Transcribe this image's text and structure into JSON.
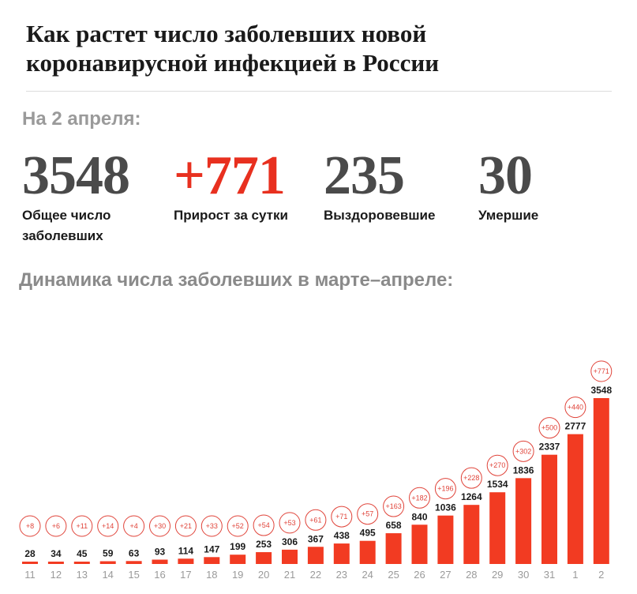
{
  "header": {
    "title": "Как растет число заболевших новой коронавирусной инфекцией в России"
  },
  "summary": {
    "date_label": "На 2 апреля:",
    "total": {
      "value": "3548",
      "caption": "Общее число заболевших"
    },
    "growth": {
      "value": "+771",
      "caption": "Прирост за сутки"
    },
    "recovered": {
      "value": "235",
      "caption": "Выздоровевшие"
    },
    "deaths": {
      "value": "30",
      "caption": "Умершие"
    }
  },
  "chart_title": "Динамика числа заболевших в марте–апреле:",
  "colors": {
    "bar": "#f23b22",
    "accent": "#e8301f",
    "text": "#1a1a1a",
    "muted": "#9a9a9a",
    "circle": "#e0443a"
  },
  "chart_data": {
    "type": "bar",
    "title": "Динамика числа заболевших в марте–апреле:",
    "xlabel": "",
    "ylabel": "",
    "categories": [
      "11",
      "12",
      "13",
      "14",
      "15",
      "16",
      "17",
      "18",
      "19",
      "20",
      "21",
      "22",
      "23",
      "24",
      "25",
      "26",
      "27",
      "28",
      "29",
      "30",
      "31",
      "1",
      "2"
    ],
    "series": [
      {
        "name": "Общее число заболевших",
        "values": [
          28,
          34,
          45,
          59,
          63,
          93,
          114,
          147,
          199,
          253,
          306,
          367,
          438,
          495,
          658,
          840,
          1036,
          1264,
          1534,
          1836,
          2337,
          2777,
          3548
        ]
      },
      {
        "name": "Прирост за сутки",
        "values": [
          "+8",
          "+6",
          "+11",
          "+14",
          "+4",
          "+30",
          "+21",
          "+33",
          "+52",
          "+54",
          "+53",
          "+61",
          "+71",
          "+57",
          "+163",
          "+182",
          "+196",
          "+228",
          "+270",
          "+302",
          "+500",
          "+440",
          "+771"
        ]
      }
    ],
    "ylim": [
      0,
      3548
    ],
    "grid": false,
    "legend": "none"
  }
}
